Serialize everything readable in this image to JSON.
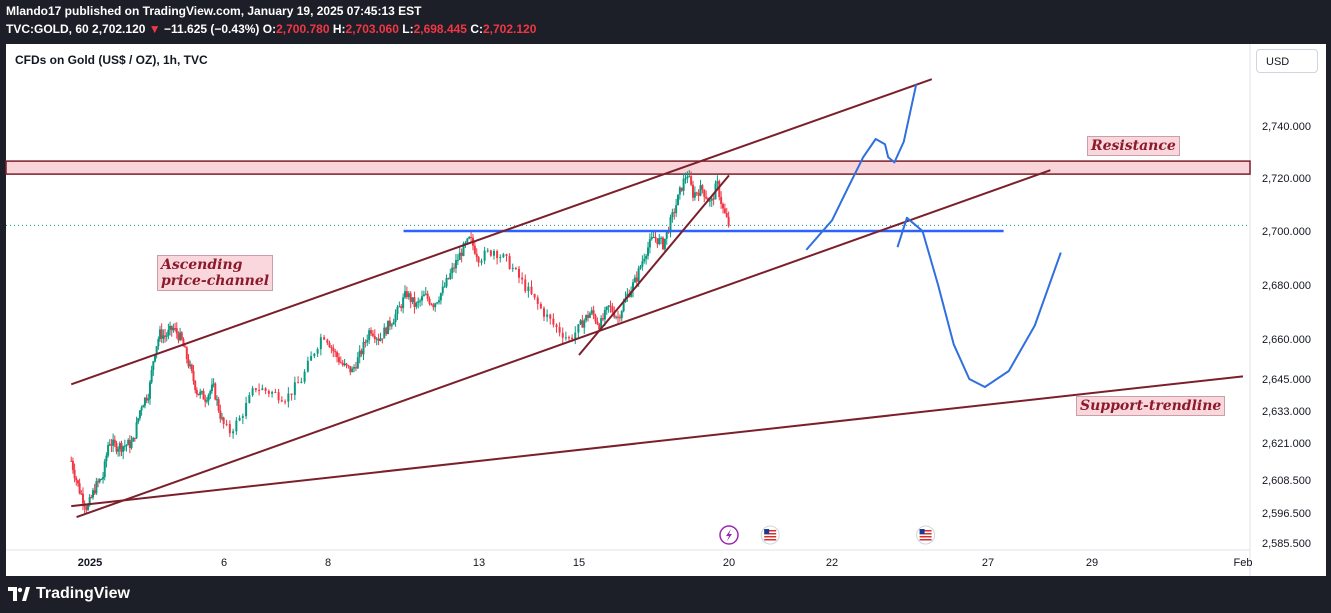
{
  "header": {
    "published": "Mlando17 published on TradingView.com, January 19, 2025 07:45:13 EST",
    "symbol": "TVC:GOLD, 60",
    "last": "2,702.120",
    "arrow": "▼",
    "change": "−11.625 (−0.43%)",
    "o_label": "O:",
    "o": "2,700.780",
    "h_label": "H:",
    "h": "2,703.060",
    "l_label": "L:",
    "l": "2,698.445",
    "c_label": "C:",
    "c": "2,702.120"
  },
  "chart_title": "CFDs on Gold (US$ / OZ), 1h, TVC",
  "currency_button": "USD",
  "footer": {
    "brand": "TradingView"
  },
  "annotations": {
    "ascending_line1": "Ascending",
    "ascending_line2": "price-channel",
    "resistance": "Resistance",
    "support": "Support-trendline"
  },
  "colors": {
    "up": "#089981",
    "down": "#f23645",
    "trend": "#7b1f2b",
    "level": "#2962ff",
    "projection": "#2f6fdf",
    "zone": "#f9d5da"
  },
  "chart_data": {
    "type": "candlestick",
    "title": "CFDs on Gold (US$ / OZ), 1h, TVC",
    "xlabel": "",
    "ylabel": "USD",
    "y_ticks": [
      "2,740.000",
      "2,720.000",
      "2,700.000",
      "2,680.000",
      "2,660.000",
      "2,645.000",
      "2,633.000",
      "2,621.000",
      "2,608.500",
      "2,596.500",
      "2,585.500"
    ],
    "y_tick_values": [
      2740,
      2720,
      2700,
      2680,
      2660,
      2645,
      2633,
      2621,
      2608.5,
      2596.5,
      2585.5
    ],
    "x_ticks": [
      "2025",
      "6",
      "8",
      "13",
      "15",
      "20",
      "22",
      "27",
      "29",
      "Feb"
    ],
    "x_tick_days": [
      1,
      6,
      8,
      13,
      15,
      20,
      22,
      27,
      29,
      32
    ],
    "x_range_days": [
      0.3,
      32
    ],
    "current_price": 2702.12,
    "price_path": [
      [
        0.3,
        2615
      ],
      [
        0.6,
        2605
      ],
      [
        0.9,
        2598
      ],
      [
        1.2,
        2606
      ],
      [
        1.5,
        2610
      ],
      [
        1.7,
        2622
      ],
      [
        1.9,
        2620
      ],
      [
        2.2,
        2620
      ],
      [
        2.6,
        2621
      ],
      [
        2.9,
        2635
      ],
      [
        3.2,
        2640
      ],
      [
        3.4,
        2655
      ],
      [
        3.6,
        2662
      ],
      [
        3.8,
        2661
      ],
      [
        4.1,
        2664
      ],
      [
        4.4,
        2660
      ],
      [
        4.7,
        2650
      ],
      [
        5.0,
        2640
      ],
      [
        5.3,
        2638
      ],
      [
        5.6,
        2642
      ],
      [
        5.9,
        2630
      ],
      [
        6.1,
        2625
      ],
      [
        6.3,
        2630
      ],
      [
        6.6,
        2642
      ],
      [
        6.9,
        2640
      ],
      [
        7.2,
        2638
      ],
      [
        7.5,
        2645
      ],
      [
        7.7,
        2654
      ],
      [
        7.9,
        2662
      ],
      [
        8.2,
        2655
      ],
      [
        8.5,
        2650
      ],
      [
        8.8,
        2648
      ],
      [
        9.1,
        2655
      ],
      [
        9.4,
        2664
      ],
      [
        9.7,
        2660
      ],
      [
        10.0,
        2665
      ],
      [
        10.3,
        2670
      ],
      [
        10.6,
        2677
      ],
      [
        10.9,
        2672
      ],
      [
        11.2,
        2676
      ],
      [
        11.5,
        2673
      ],
      [
        11.8,
        2678
      ],
      [
        12.1,
        2685
      ],
      [
        12.4,
        2692
      ],
      [
        12.7,
        2697
      ],
      [
        13.0,
        2690
      ],
      [
        13.3,
        2693
      ],
      [
        13.6,
        2688
      ],
      [
        13.9,
        2680
      ],
      [
        14.2,
        2672
      ],
      [
        14.5,
        2665
      ],
      [
        14.8,
        2660
      ],
      [
        15.1,
        2666
      ],
      [
        15.4,
        2670
      ],
      [
        15.7,
        2665
      ],
      [
        16.0,
        2672
      ],
      [
        16.3,
        2668
      ],
      [
        16.6,
        2676
      ],
      [
        16.9,
        2682
      ],
      [
        17.2,
        2692
      ],
      [
        17.5,
        2698
      ],
      [
        17.8,
        2695
      ],
      [
        18.1,
        2705
      ],
      [
        18.4,
        2716
      ],
      [
        18.6,
        2722
      ],
      [
        18.8,
        2714
      ],
      [
        19.1,
        2716
      ],
      [
        19.4,
        2710
      ],
      [
        19.6,
        2718
      ],
      [
        19.8,
        2708
      ],
      [
        20.0,
        2702
      ]
    ],
    "levels": [
      {
        "name": "Resistance zone",
        "from": 2721.5,
        "to": 2726.5
      },
      {
        "name": "Horizontal level",
        "value": 2700,
        "from_day": 10.5,
        "to_day": 27.3
      }
    ],
    "trendlines": [
      {
        "name": "Channel upper",
        "points": [
          [
            0.3,
            2643
          ],
          [
            25.2,
            2758
          ]
        ]
      },
      {
        "name": "Channel lower",
        "points": [
          [
            0.5,
            2595
          ],
          [
            28.2,
            2723
          ]
        ]
      },
      {
        "name": "Short rising line",
        "points": [
          [
            15.0,
            2654
          ],
          [
            20.0,
            2721
          ]
        ]
      },
      {
        "name": "Support-trendline",
        "points": [
          [
            0.3,
            2599
          ],
          [
            32.0,
            2646
          ]
        ]
      }
    ],
    "projection": [
      [
        21.5,
        2693
      ],
      [
        22.0,
        2704
      ],
      [
        22.5,
        2716
      ],
      [
        23.0,
        2728
      ],
      [
        23.4,
        2735
      ],
      [
        23.7,
        2733
      ],
      [
        23.8,
        2728
      ],
      [
        24.0,
        2726
      ],
      [
        24.3,
        2734
      ],
      [
        24.7,
        2756
      ],
      [
        24.1,
        2694
      ],
      [
        24.4,
        2705
      ],
      [
        24.9,
        2700
      ],
      [
        25.4,
        2680
      ],
      [
        25.9,
        2658
      ],
      [
        26.4,
        2645
      ],
      [
        26.9,
        2642
      ],
      [
        27.4,
        2648
      ],
      [
        27.9,
        2665
      ],
      [
        28.4,
        2692
      ]
    ],
    "event_markers": [
      {
        "type": "earnings",
        "day": 20.0
      },
      {
        "type": "us-flag",
        "day": 20.8
      },
      {
        "type": "us-flag",
        "day": 25.0
      }
    ]
  }
}
